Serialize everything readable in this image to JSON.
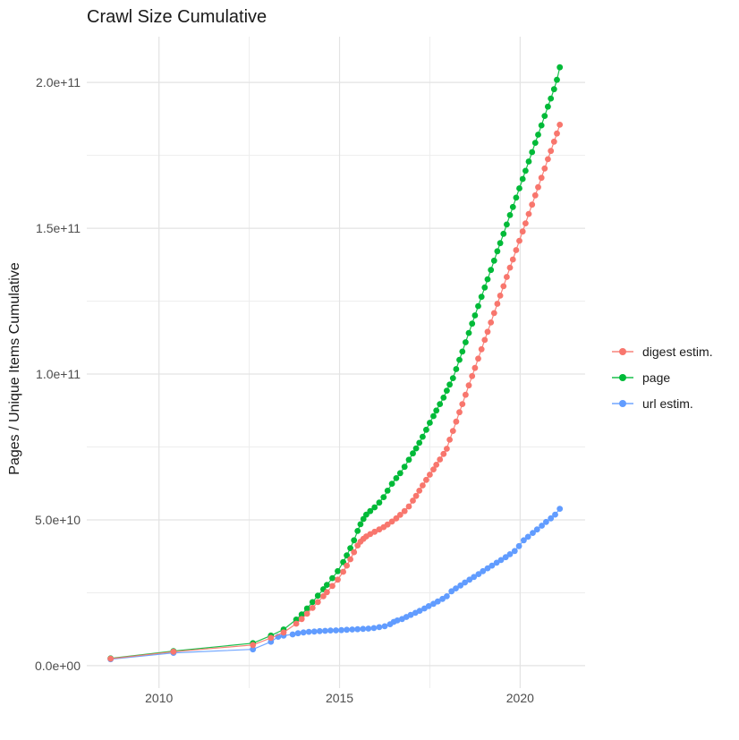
{
  "chart_data": {
    "type": "line",
    "title": "Crawl Size Cumulative",
    "xlabel": "",
    "ylabel": "Pages / Unique Items Cumulative",
    "xlim": [
      2008,
      2021.8
    ],
    "ylim": [
      -7700000000.0,
      215700000000.0
    ],
    "grid": true,
    "legend_position": "right",
    "x_ticks": {
      "values": [
        2010,
        2015,
        2020
      ],
      "labels": [
        "2010",
        "2015",
        "2020"
      ],
      "minor": [
        2012.5,
        2017.5
      ]
    },
    "y_ticks": {
      "values": [
        0,
        50000000000.0,
        100000000000.0,
        150000000000.0,
        200000000000.0
      ],
      "labels": [
        "0.0e+00",
        "5.0e+10",
        "1.0e+11",
        "1.5e+11",
        "2.0e+11"
      ],
      "minor": [
        25000000000.0,
        75000000000.0,
        125000000000.0,
        175000000000.0
      ]
    },
    "style": {
      "point_radius": 3.4,
      "line_width": 1.2,
      "grid_major_color": "#e3e3e3",
      "grid_minor_color": "#ededed",
      "tick_label_color": "#4d4d4d",
      "title_color": "#1a1a1a",
      "background": "#ffffff"
    },
    "draw_order": [
      1,
      2,
      0
    ],
    "series": [
      {
        "name": "digest estim.",
        "color": "#F8766D",
        "points": [
          [
            2008.66,
            2400000000.0
          ],
          [
            2010.4,
            4800000000.0
          ],
          [
            2012.6,
            7100000000.0
          ],
          [
            2013.1,
            9500000000.0
          ],
          [
            2013.45,
            11400000000.0
          ],
          [
            2013.8,
            14400000000.0
          ],
          [
            2013.95,
            16000000000.0
          ],
          [
            2014.1,
            17800000000.0
          ],
          [
            2014.25,
            19800000000.0
          ],
          [
            2014.4,
            21800000000.0
          ],
          [
            2014.55,
            23800000000.0
          ],
          [
            2014.65,
            25200000000.0
          ],
          [
            2014.8,
            27300000000.0
          ],
          [
            2014.95,
            29500000000.0
          ],
          [
            2015.1,
            32200000000.0
          ],
          [
            2015.2,
            34300000000.0
          ],
          [
            2015.3,
            36500000000.0
          ],
          [
            2015.4,
            38900000000.0
          ],
          [
            2015.5,
            41200000000.0
          ],
          [
            2015.58,
            42500000000.0
          ],
          [
            2015.66,
            43500000000.0
          ],
          [
            2015.74,
            44300000000.0
          ],
          [
            2015.85,
            45100000000.0
          ],
          [
            2015.97,
            45900000000.0
          ],
          [
            2016.1,
            46700000000.0
          ],
          [
            2016.22,
            47500000000.0
          ],
          [
            2016.33,
            48400000000.0
          ],
          [
            2016.45,
            49400000000.0
          ],
          [
            2016.57,
            50500000000.0
          ],
          [
            2016.68,
            51700000000.0
          ],
          [
            2016.8,
            53000000000.0
          ],
          [
            2016.92,
            54600000000.0
          ],
          [
            2017.03,
            56600000000.0
          ],
          [
            2017.12,
            58200000000.0
          ],
          [
            2017.21,
            60000000000.0
          ],
          [
            2017.3,
            61800000000.0
          ],
          [
            2017.4,
            63700000000.0
          ],
          [
            2017.5,
            65500000000.0
          ],
          [
            2017.6,
            67300000000.0
          ],
          [
            2017.68,
            68900000000.0
          ],
          [
            2017.78,
            70700000000.0
          ],
          [
            2017.88,
            72600000000.0
          ],
          [
            2017.97,
            74400000000.0
          ],
          [
            2018.05,
            77500000000.0
          ],
          [
            2018.14,
            80500000000.0
          ],
          [
            2018.23,
            83700000000.0
          ],
          [
            2018.32,
            86900000000.0
          ],
          [
            2018.4,
            89700000000.0
          ],
          [
            2018.49,
            92900000000.0
          ],
          [
            2018.58,
            96100000000.0
          ],
          [
            2018.67,
            99300000000.0
          ],
          [
            2018.75,
            102100000000.0
          ],
          [
            2018.84,
            105300000000.0
          ],
          [
            2018.93,
            108500000000.0
          ],
          [
            2019.02,
            111700000000.0
          ],
          [
            2019.1,
            114500000000.0
          ],
          [
            2019.19,
            117700000000.0
          ],
          [
            2019.28,
            120900000000.0
          ],
          [
            2019.37,
            124100000000.0
          ],
          [
            2019.45,
            126900000000.0
          ],
          [
            2019.54,
            130100000000.0
          ],
          [
            2019.63,
            133300000000.0
          ],
          [
            2019.72,
            136500000000.0
          ],
          [
            2019.8,
            139300000000.0
          ],
          [
            2019.89,
            142500000000.0
          ],
          [
            2019.98,
            145700000000.0
          ],
          [
            2020.07,
            148900000000.0
          ],
          [
            2020.15,
            151700000000.0
          ],
          [
            2020.24,
            154900000000.0
          ],
          [
            2020.33,
            158100000000.0
          ],
          [
            2020.42,
            161300000000.0
          ],
          [
            2020.5,
            164100000000.0
          ],
          [
            2020.59,
            167300000000.0
          ],
          [
            2020.68,
            170500000000.0
          ],
          [
            2020.77,
            173700000000.0
          ],
          [
            2020.85,
            176500000000.0
          ],
          [
            2020.94,
            179700000000.0
          ],
          [
            2021.02,
            182500000000.0
          ],
          [
            2021.1,
            185500000000.0
          ]
        ]
      },
      {
        "name": "page",
        "color": "#00BA38",
        "points": [
          [
            2008.66,
            2500000000.0
          ],
          [
            2010.4,
            5000000000.0
          ],
          [
            2012.6,
            7700000000.0
          ],
          [
            2013.1,
            10300000000.0
          ],
          [
            2013.45,
            12400000000.0
          ],
          [
            2013.8,
            15800000000.0
          ],
          [
            2013.95,
            17600000000.0
          ],
          [
            2014.1,
            19600000000.0
          ],
          [
            2014.25,
            21800000000.0
          ],
          [
            2014.4,
            24000000000.0
          ],
          [
            2014.55,
            26200000000.0
          ],
          [
            2014.65,
            27700000000.0
          ],
          [
            2014.8,
            30000000000.0
          ],
          [
            2014.95,
            32400000000.0
          ],
          [
            2015.1,
            35500000000.0
          ],
          [
            2015.2,
            37800000000.0
          ],
          [
            2015.3,
            40300000000.0
          ],
          [
            2015.4,
            43000000000.0
          ],
          [
            2015.5,
            46200000000.0
          ],
          [
            2015.58,
            48500000000.0
          ],
          [
            2015.66,
            50300000000.0
          ],
          [
            2015.74,
            51800000000.0
          ],
          [
            2015.85,
            53000000000.0
          ],
          [
            2015.97,
            54300000000.0
          ],
          [
            2016.1,
            55900000000.0
          ],
          [
            2016.22,
            57800000000.0
          ],
          [
            2016.33,
            60000000000.0
          ],
          [
            2016.45,
            62400000000.0
          ],
          [
            2016.57,
            64300000000.0
          ],
          [
            2016.68,
            66000000000.0
          ],
          [
            2016.8,
            68200000000.0
          ],
          [
            2016.92,
            70600000000.0
          ],
          [
            2017.03,
            72800000000.0
          ],
          [
            2017.12,
            74500000000.0
          ],
          [
            2017.21,
            76400000000.0
          ],
          [
            2017.3,
            78500000000.0
          ],
          [
            2017.4,
            80900000000.0
          ],
          [
            2017.5,
            83300000000.0
          ],
          [
            2017.6,
            85600000000.0
          ],
          [
            2017.68,
            87500000000.0
          ],
          [
            2017.78,
            89700000000.0
          ],
          [
            2017.88,
            91900000000.0
          ],
          [
            2017.97,
            94300000000.0
          ],
          [
            2018.05,
            96400000000.0
          ],
          [
            2018.14,
            98600000000.0
          ],
          [
            2018.23,
            101700000000.0
          ],
          [
            2018.32,
            104900000000.0
          ],
          [
            2018.4,
            107700000000.0
          ],
          [
            2018.49,
            110900000000.0
          ],
          [
            2018.58,
            114100000000.0
          ],
          [
            2018.67,
            117300000000.0
          ],
          [
            2018.75,
            120100000000.0
          ],
          [
            2018.84,
            123300000000.0
          ],
          [
            2018.93,
            126500000000.0
          ],
          [
            2019.02,
            129700000000.0
          ],
          [
            2019.1,
            132500000000.0
          ],
          [
            2019.19,
            135700000000.0
          ],
          [
            2019.28,
            138900000000.0
          ],
          [
            2019.37,
            142100000000.0
          ],
          [
            2019.45,
            144900000000.0
          ],
          [
            2019.54,
            148100000000.0
          ],
          [
            2019.63,
            151300000000.0
          ],
          [
            2019.72,
            154500000000.0
          ],
          [
            2019.8,
            157300000000.0
          ],
          [
            2019.89,
            160500000000.0
          ],
          [
            2019.98,
            163700000000.0
          ],
          [
            2020.07,
            166900000000.0
          ],
          [
            2020.15,
            169700000000.0
          ],
          [
            2020.24,
            172900000000.0
          ],
          [
            2020.33,
            176100000000.0
          ],
          [
            2020.42,
            179300000000.0
          ],
          [
            2020.5,
            182100000000.0
          ],
          [
            2020.59,
            185300000000.0
          ],
          [
            2020.68,
            188500000000.0
          ],
          [
            2020.77,
            191700000000.0
          ],
          [
            2020.85,
            194500000000.0
          ],
          [
            2020.94,
            197700000000.0
          ],
          [
            2021.02,
            200900000000.0
          ],
          [
            2021.1,
            205200000000.0
          ]
        ]
      },
      {
        "name": "url estim.",
        "color": "#619CFF",
        "points": [
          [
            2008.66,
            2200000000.0
          ],
          [
            2010.4,
            4400000000.0
          ],
          [
            2012.6,
            5600000000.0
          ],
          [
            2013.1,
            8200000000.0
          ],
          [
            2013.3,
            9900000000.0
          ],
          [
            2013.45,
            10300000000.0
          ],
          [
            2013.7,
            10700000000.0
          ],
          [
            2013.85,
            11100000000.0
          ],
          [
            2014.0,
            11400000000.0
          ],
          [
            2014.15,
            11600000000.0
          ],
          [
            2014.3,
            11700000000.0
          ],
          [
            2014.45,
            11850000000.0
          ],
          [
            2014.6,
            11950000000.0
          ],
          [
            2014.75,
            12050000000.0
          ],
          [
            2014.9,
            12100000000.0
          ],
          [
            2015.05,
            12200000000.0
          ],
          [
            2015.2,
            12300000000.0
          ],
          [
            2015.35,
            12400000000.0
          ],
          [
            2015.5,
            12500000000.0
          ],
          [
            2015.65,
            12600000000.0
          ],
          [
            2015.8,
            12700000000.0
          ],
          [
            2015.95,
            12900000000.0
          ],
          [
            2016.1,
            13200000000.0
          ],
          [
            2016.25,
            13500000000.0
          ],
          [
            2016.4,
            14200000000.0
          ],
          [
            2016.5,
            15000000000.0
          ],
          [
            2016.6,
            15500000000.0
          ],
          [
            2016.73,
            16000000000.0
          ],
          [
            2016.85,
            16700000000.0
          ],
          [
            2016.97,
            17400000000.0
          ],
          [
            2017.1,
            18100000000.0
          ],
          [
            2017.22,
            18800000000.0
          ],
          [
            2017.35,
            19600000000.0
          ],
          [
            2017.47,
            20400000000.0
          ],
          [
            2017.6,
            21200000000.0
          ],
          [
            2017.72,
            22000000000.0
          ],
          [
            2017.85,
            22900000000.0
          ],
          [
            2017.97,
            23800000000.0
          ],
          [
            2018.1,
            25500000000.0
          ],
          [
            2018.22,
            26500000000.0
          ],
          [
            2018.35,
            27500000000.0
          ],
          [
            2018.47,
            28500000000.0
          ],
          [
            2018.6,
            29500000000.0
          ],
          [
            2018.72,
            30400000000.0
          ],
          [
            2018.85,
            31400000000.0
          ],
          [
            2018.97,
            32400000000.0
          ],
          [
            2019.1,
            33400000000.0
          ],
          [
            2019.22,
            34300000000.0
          ],
          [
            2019.35,
            35300000000.0
          ],
          [
            2019.47,
            36200000000.0
          ],
          [
            2019.6,
            37200000000.0
          ],
          [
            2019.72,
            38200000000.0
          ],
          [
            2019.85,
            39300000000.0
          ],
          [
            2019.97,
            41000000000.0
          ],
          [
            2020.1,
            43000000000.0
          ],
          [
            2020.22,
            44200000000.0
          ],
          [
            2020.35,
            45500000000.0
          ],
          [
            2020.47,
            46700000000.0
          ],
          [
            2020.6,
            48000000000.0
          ],
          [
            2020.72,
            49300000000.0
          ],
          [
            2020.85,
            50500000000.0
          ],
          [
            2020.97,
            51800000000.0
          ],
          [
            2021.1,
            53800000000.0
          ]
        ]
      }
    ]
  }
}
